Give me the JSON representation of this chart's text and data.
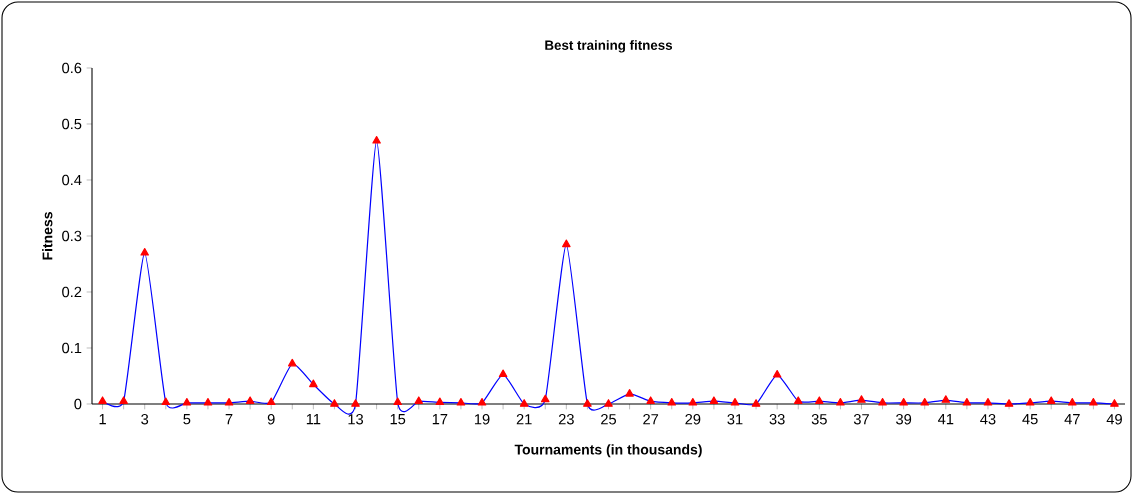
{
  "chart_data": {
    "type": "line",
    "title": "Best training fitness",
    "xlabel": "Tournaments (in thousands)",
    "ylabel": "Fitness",
    "categories": [
      "1",
      null,
      "3",
      null,
      "5",
      null,
      "7",
      null,
      "9",
      null,
      "11",
      null,
      "13",
      null,
      "15",
      null,
      "17",
      null,
      "19",
      null,
      "21",
      null,
      "23",
      null,
      "25",
      null,
      "27",
      null,
      "29",
      null,
      "31",
      null,
      "33",
      null,
      "35",
      null,
      "37",
      null,
      "39",
      null,
      "41",
      null,
      "43",
      null,
      "45",
      null,
      "47",
      null,
      "49"
    ],
    "series": [
      {
        "color": "#0000ff",
        "values": [
          0.005,
          0.005,
          0.27,
          0.003,
          0.002,
          0.002,
          0.002,
          0.005,
          0.003,
          0.072,
          0.035,
          0,
          0,
          0.47,
          0.003,
          0.005,
          0.003,
          0.002,
          0.002,
          0.053,
          0,
          0.008,
          0.285,
          0,
          0,
          0.018,
          0.005,
          0.002,
          0.002,
          0.005,
          0.002,
          0,
          0.052,
          0.005,
          0.005,
          0.002,
          0.007,
          0.002,
          0.002,
          0.002,
          0.007,
          0.002,
          0.002,
          0,
          0.002,
          0.005,
          0.002,
          0.002,
          0
        ]
      }
    ],
    "ylim": [
      0,
      0.6
    ],
    "yticks": [
      0,
      0.1,
      0.2,
      0.3,
      0.4,
      0.5,
      0.6
    ],
    "marker": "triangle",
    "line_style": "solid"
  }
}
